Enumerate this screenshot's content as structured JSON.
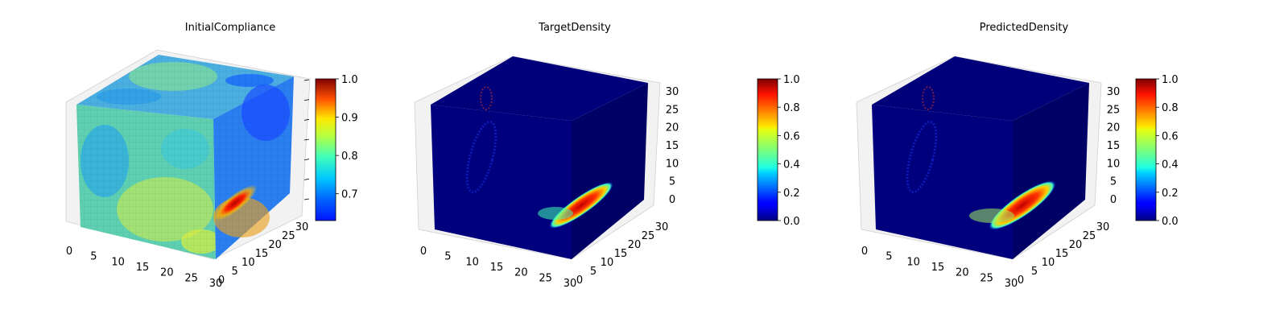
{
  "chart_data": [
    {
      "type": "voxel3d",
      "title": "InitialCompliance",
      "colormap": "jet",
      "x_ticks": [
        "0",
        "5",
        "10",
        "15",
        "20",
        "25",
        "30"
      ],
      "y_ticks": [
        "0",
        "5",
        "10",
        "15",
        "20",
        "25",
        "30"
      ],
      "z_ticks": [],
      "grid_size": 32,
      "colorbar": {
        "min": 0.63,
        "max": 1.0,
        "ticks": [
          "0.7",
          "0.8",
          "0.9",
          "1.0"
        ],
        "tick_values": [
          0.7,
          0.8,
          0.9,
          1.0
        ]
      },
      "hotspot": {
        "description_value": "red band near x≈30, y≈5–12, z≈5–10",
        "value": 1.0
      }
    },
    {
      "type": "voxel3d",
      "title": "TargetDensity",
      "colormap": "jet",
      "x_ticks": [
        "0",
        "5",
        "10",
        "15",
        "20",
        "25",
        "30"
      ],
      "y_ticks": [
        "0",
        "5",
        "10",
        "15",
        "20",
        "25",
        "30"
      ],
      "z_ticks": [
        "0",
        "5",
        "10",
        "15",
        "20",
        "25",
        "30"
      ],
      "grid_size": 32,
      "colorbar": {
        "min": 0.0,
        "max": 1.0,
        "ticks": [
          "0.0",
          "0.2",
          "0.4",
          "0.6",
          "0.8",
          "1.0"
        ],
        "tick_values": [
          0.0,
          0.2,
          0.4,
          0.6,
          0.8,
          1.0
        ]
      },
      "hotspot": {
        "value": 1.0
      }
    },
    {
      "type": "voxel3d",
      "title": "PredictedDensity",
      "colormap": "jet",
      "x_ticks": [
        "0",
        "5",
        "10",
        "15",
        "20",
        "25",
        "30"
      ],
      "y_ticks": [
        "0",
        "5",
        "10",
        "15",
        "20",
        "25",
        "30"
      ],
      "z_ticks": [
        "0",
        "5",
        "10",
        "15",
        "20",
        "25",
        "30"
      ],
      "grid_size": 32,
      "colorbar": {
        "min": 0.0,
        "max": 1.0,
        "ticks": [
          "0.0",
          "0.2",
          "0.4",
          "0.6",
          "0.8",
          "1.0"
        ],
        "tick_values": [
          0.0,
          0.2,
          0.4,
          0.6,
          0.8,
          1.0
        ]
      },
      "hotspot": {
        "value": 1.0
      }
    }
  ]
}
